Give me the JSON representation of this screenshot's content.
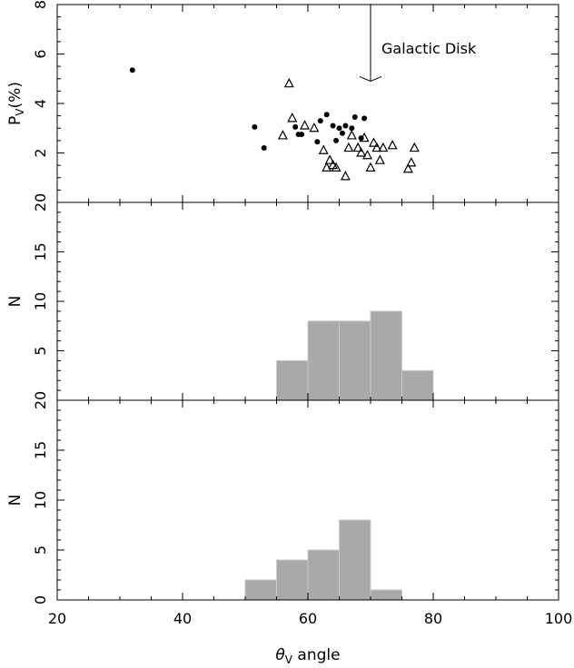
{
  "chart_data": [
    {
      "type": "scatter",
      "xlim": [
        20,
        100
      ],
      "ylim": [
        0,
        8
      ],
      "ylabel": "P_V(%)",
      "ylabel_main": "P",
      "ylabel_sub": "V",
      "ylabel_rest": "(%)",
      "yticks": [
        "2",
        "4",
        "6",
        "8"
      ],
      "annotation": {
        "text": "Galactic Disk",
        "x": 70,
        "arrow_from_y": 8,
        "arrow_to_y": 4.9
      },
      "series": [
        {
          "marker": "filled-circle",
          "x": [
            32,
            51.5,
            53,
            58,
            58.5,
            59,
            61.5,
            62,
            63,
            64,
            64.5,
            65,
            65.5,
            66,
            67,
            67.5,
            68.5,
            69
          ],
          "y": [
            5.35,
            3.05,
            2.2,
            3.05,
            2.75,
            2.75,
            2.45,
            3.3,
            3.55,
            3.1,
            2.5,
            3.0,
            2.8,
            3.1,
            3.0,
            3.45,
            2.6,
            3.4
          ]
        },
        {
          "marker": "open-triangle",
          "x": [
            56,
            57,
            57.5,
            59.5,
            61,
            62.5,
            63,
            63.5,
            64,
            64.5,
            66,
            66.5,
            67,
            68,
            68.5,
            69,
            69.5,
            70,
            70.5,
            71,
            71.5,
            72,
            73.5,
            76,
            76.5,
            77
          ],
          "y": [
            2.7,
            4.8,
            3.4,
            3.1,
            3.0,
            2.1,
            1.4,
            1.7,
            1.5,
            1.4,
            1.05,
            2.2,
            2.7,
            2.2,
            2.0,
            2.6,
            1.9,
            1.4,
            2.4,
            2.2,
            1.7,
            2.2,
            2.3,
            1.35,
            1.6,
            2.2
          ]
        }
      ]
    },
    {
      "type": "bar",
      "xlim": [
        20,
        100
      ],
      "ylim": [
        0,
        20
      ],
      "ylabel": "N",
      "yticks": [
        "5",
        "10",
        "15",
        "20"
      ],
      "bins": [
        [
          55,
          60
        ],
        [
          60,
          65
        ],
        [
          65,
          70
        ],
        [
          70,
          75
        ],
        [
          75,
          80
        ]
      ],
      "values": [
        4,
        8,
        8,
        9,
        3
      ]
    },
    {
      "type": "bar",
      "xlim": [
        20,
        100
      ],
      "ylim": [
        0,
        20
      ],
      "ylabel": "N",
      "yticks": [
        "0",
        "5",
        "10",
        "15",
        "20"
      ],
      "xticks": [
        "20",
        "40",
        "60",
        "80",
        "100"
      ],
      "xlabel": "θ_V angle",
      "xlabel_main": "θ",
      "xlabel_sub": "V",
      "xlabel_rest": " angle",
      "bins": [
        [
          50,
          55
        ],
        [
          55,
          60
        ],
        [
          60,
          65
        ],
        [
          65,
          70
        ],
        [
          70,
          75
        ]
      ],
      "values": [
        2,
        4,
        5,
        8,
        1
      ]
    }
  ],
  "colors": {
    "bar_fill": "#a9a9a9",
    "axis": "#000000"
  }
}
